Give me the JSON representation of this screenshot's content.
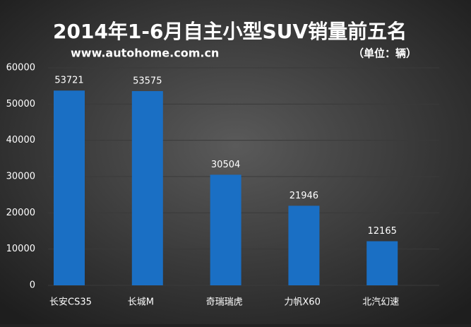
{
  "chart_data": {
    "type": "bar",
    "title": "2014年1-6月自主小型SUV销量前五名",
    "subtitle": "www.autohome.com.cn",
    "unit": "（单位：辆）",
    "categories": [
      "长安CS35",
      "长城M",
      "奇瑞瑞虎",
      "力帆X60",
      "北汽幻速"
    ],
    "values": [
      53721,
      53575,
      30504,
      21946,
      12165
    ],
    "color": "#1a6fc4",
    "ylim": [
      0,
      60000
    ],
    "yticks": [
      0,
      10000,
      20000,
      30000,
      40000,
      50000,
      60000
    ],
    "grid": true
  }
}
